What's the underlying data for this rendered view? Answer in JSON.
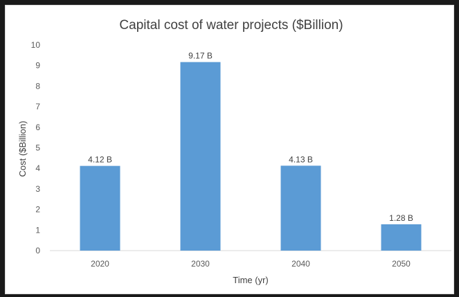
{
  "chart_data": {
    "type": "bar",
    "title": "Capital cost of water projects ($Billion)",
    "xlabel": "Time (yr)",
    "ylabel": "Cost ($Billion)",
    "categories": [
      "2020",
      "2030",
      "2040",
      "2050"
    ],
    "values": [
      4.12,
      9.17,
      4.13,
      1.28
    ],
    "data_labels": [
      "4.12 B",
      "9.17 B",
      "4.13 B",
      "1.28 B"
    ],
    "ylim": [
      0,
      10
    ],
    "yticks": [
      "0",
      "1",
      "2",
      "3",
      "4",
      "5",
      "6",
      "7",
      "8",
      "9",
      "10"
    ],
    "grid": false,
    "legend": "none",
    "bar_color": "#5b9bd5"
  }
}
